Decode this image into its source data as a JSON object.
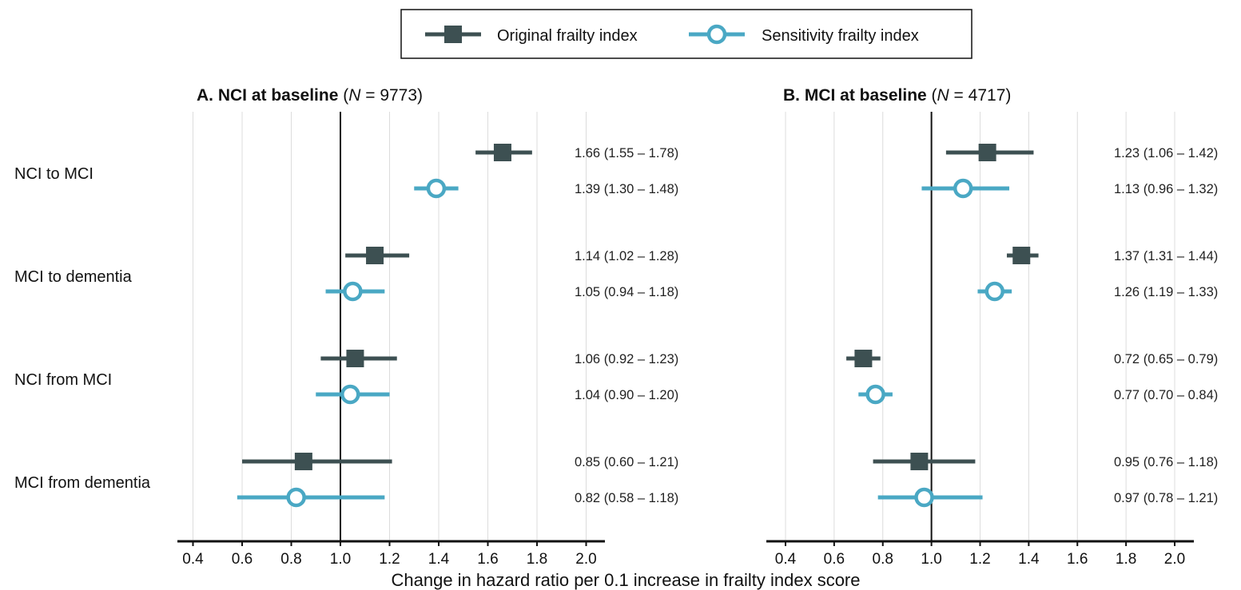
{
  "legend": {
    "items": [
      {
        "label": "Original frailty index",
        "color": "#3d5052",
        "marker": "square"
      },
      {
        "label": "Sensitivity frailty index",
        "color": "#4aa8c4",
        "marker": "open-circle"
      }
    ]
  },
  "x_axis_title": "Change in hazard ratio per 0.1 increase in frailty index score",
  "chart_data": {
    "type": "forest",
    "xlim": [
      0.35,
      2.1
    ],
    "xticks": [
      0.4,
      0.6,
      0.8,
      1.0,
      1.2,
      1.4,
      1.6,
      1.8,
      2.0
    ],
    "xtick_labels": [
      "0.4",
      "0.6",
      "0.8",
      "1.0",
      "1.2",
      "1.4",
      "1.6",
      "1.8",
      "2.0"
    ],
    "reference_line": 1.0,
    "grid": "vertical",
    "legend_position": "top-center",
    "categories": [
      "NCI to MCI",
      "MCI to dementia",
      "NCI from MCI",
      "MCI from dementia"
    ],
    "series_names": [
      "Original frailty index",
      "Sensitivity frailty index"
    ],
    "panels": [
      {
        "title_bold": "A. NCI at baseline",
        "title_n_prefix": " (",
        "title_n_italic": "N",
        "title_n_value": " = 9773)",
        "rows": [
          {
            "category": "NCI to MCI",
            "original": {
              "hr": 1.66,
              "lo": 1.55,
              "hi": 1.78,
              "label": "1.66 (1.55 – 1.78)"
            },
            "sensitivity": {
              "hr": 1.39,
              "lo": 1.3,
              "hi": 1.48,
              "label": "1.39 (1.30 – 1.48)"
            }
          },
          {
            "category": "MCI to dementia",
            "original": {
              "hr": 1.14,
              "lo": 1.02,
              "hi": 1.28,
              "label": "1.14 (1.02 – 1.28)"
            },
            "sensitivity": {
              "hr": 1.05,
              "lo": 0.94,
              "hi": 1.18,
              "label": "1.05 (0.94 – 1.18)"
            }
          },
          {
            "category": "NCI from MCI",
            "original": {
              "hr": 1.06,
              "lo": 0.92,
              "hi": 1.23,
              "label": "1.06 (0.92 – 1.23)"
            },
            "sensitivity": {
              "hr": 1.04,
              "lo": 0.9,
              "hi": 1.2,
              "label": "1.04 (0.90 – 1.20)"
            }
          },
          {
            "category": "MCI from dementia",
            "original": {
              "hr": 0.85,
              "lo": 0.6,
              "hi": 1.21,
              "label": "0.85 (0.60 – 1.21)"
            },
            "sensitivity": {
              "hr": 0.82,
              "lo": 0.58,
              "hi": 1.18,
              "label": "0.82 (0.58 – 1.18)"
            }
          }
        ]
      },
      {
        "title_bold": "B. MCI at baseline",
        "title_n_prefix": " (",
        "title_n_italic": "N",
        "title_n_value": " = 4717)",
        "rows": [
          {
            "category": "NCI to MCI",
            "original": {
              "hr": 1.23,
              "lo": 1.06,
              "hi": 1.42,
              "label": "1.23 (1.06 – 1.42)"
            },
            "sensitivity": {
              "hr": 1.13,
              "lo": 0.96,
              "hi": 1.32,
              "label": "1.13 (0.96 – 1.32)"
            }
          },
          {
            "category": "MCI to dementia",
            "original": {
              "hr": 1.37,
              "lo": 1.31,
              "hi": 1.44,
              "label": "1.37 (1.31 – 1.44)"
            },
            "sensitivity": {
              "hr": 1.26,
              "lo": 1.19,
              "hi": 1.33,
              "label": "1.26 (1.19 – 1.33)"
            }
          },
          {
            "category": "NCI from MCI",
            "original": {
              "hr": 0.72,
              "lo": 0.65,
              "hi": 0.79,
              "label": "0.72 (0.65 – 0.79)"
            },
            "sensitivity": {
              "hr": 0.77,
              "lo": 0.7,
              "hi": 0.84,
              "label": "0.77 (0.70 – 0.84)"
            }
          },
          {
            "category": "MCI from dementia",
            "original": {
              "hr": 0.95,
              "lo": 0.76,
              "hi": 1.18,
              "label": "0.95 (0.76 – 1.18)"
            },
            "sensitivity": {
              "hr": 0.97,
              "lo": 0.78,
              "hi": 1.21,
              "label": "0.97 (0.78 – 1.21)"
            }
          }
        ]
      }
    ]
  }
}
